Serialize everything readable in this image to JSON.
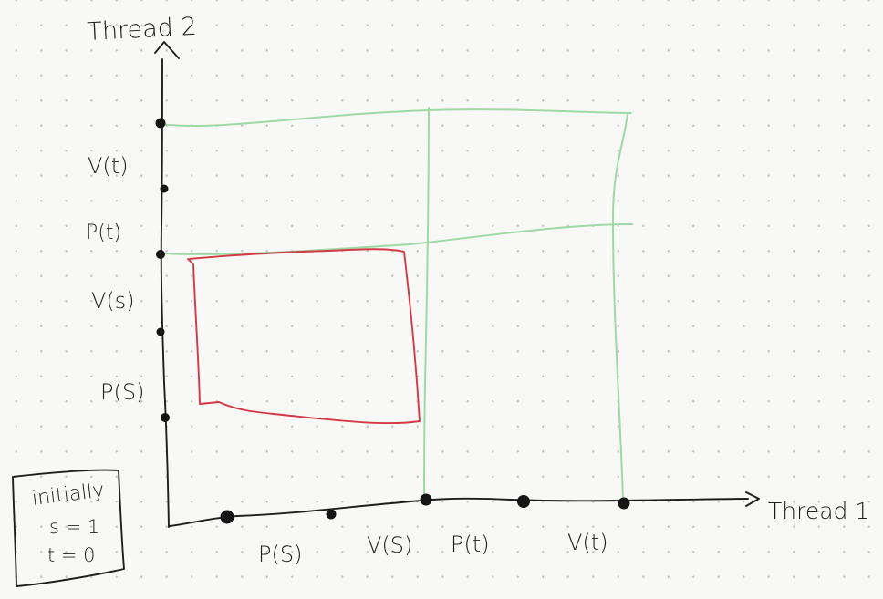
{
  "axes": {
    "y_label": "Thread 2",
    "x_label": "Thread 1"
  },
  "thread1_events": [
    "P(S)",
    "V(S)",
    "P(t)",
    "V(t)"
  ],
  "thread2_events": [
    "V(t)",
    "P(t)",
    "V(s)",
    "P(S)"
  ],
  "initial_box": {
    "title": "initially",
    "line1": "s = 1",
    "line2": "t = 0"
  },
  "colors": {
    "ink": "#1f1f1f",
    "forbidden_region": "#d23a45",
    "trajectory_lines": "#9fd9a6",
    "background": "#f8f8f6"
  }
}
